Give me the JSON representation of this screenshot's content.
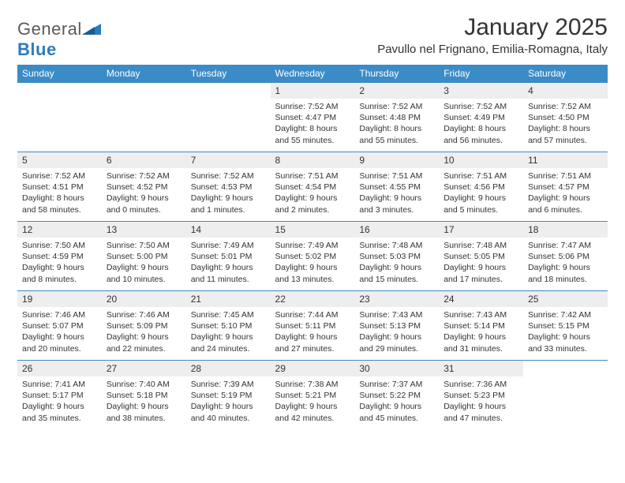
{
  "brand": {
    "text_a": "General",
    "text_b": "Blue"
  },
  "title": "January 2025",
  "location": "Pavullo nel Frignano, Emilia-Romagna, Italy",
  "colors": {
    "header_bg": "#3b8bc7",
    "header_fg": "#ffffff",
    "daynum_bg": "#eeeeee",
    "row_border": "#3b8bc7",
    "logo_blue": "#2d7bbf",
    "text": "#333333"
  },
  "weekdays": [
    "Sunday",
    "Monday",
    "Tuesday",
    "Wednesday",
    "Thursday",
    "Friday",
    "Saturday"
  ],
  "weeks": [
    [
      null,
      null,
      null,
      {
        "n": "1",
        "sr": "7:52 AM",
        "ss": "4:47 PM",
        "dh": "8",
        "dm": "55"
      },
      {
        "n": "2",
        "sr": "7:52 AM",
        "ss": "4:48 PM",
        "dh": "8",
        "dm": "55"
      },
      {
        "n": "3",
        "sr": "7:52 AM",
        "ss": "4:49 PM",
        "dh": "8",
        "dm": "56"
      },
      {
        "n": "4",
        "sr": "7:52 AM",
        "ss": "4:50 PM",
        "dh": "8",
        "dm": "57"
      }
    ],
    [
      {
        "n": "5",
        "sr": "7:52 AM",
        "ss": "4:51 PM",
        "dh": "8",
        "dm": "58"
      },
      {
        "n": "6",
        "sr": "7:52 AM",
        "ss": "4:52 PM",
        "dh": "9",
        "dm": "0"
      },
      {
        "n": "7",
        "sr": "7:52 AM",
        "ss": "4:53 PM",
        "dh": "9",
        "dm": "1"
      },
      {
        "n": "8",
        "sr": "7:51 AM",
        "ss": "4:54 PM",
        "dh": "9",
        "dm": "2"
      },
      {
        "n": "9",
        "sr": "7:51 AM",
        "ss": "4:55 PM",
        "dh": "9",
        "dm": "3"
      },
      {
        "n": "10",
        "sr": "7:51 AM",
        "ss": "4:56 PM",
        "dh": "9",
        "dm": "5"
      },
      {
        "n": "11",
        "sr": "7:51 AM",
        "ss": "4:57 PM",
        "dh": "9",
        "dm": "6"
      }
    ],
    [
      {
        "n": "12",
        "sr": "7:50 AM",
        "ss": "4:59 PM",
        "dh": "9",
        "dm": "8"
      },
      {
        "n": "13",
        "sr": "7:50 AM",
        "ss": "5:00 PM",
        "dh": "9",
        "dm": "10"
      },
      {
        "n": "14",
        "sr": "7:49 AM",
        "ss": "5:01 PM",
        "dh": "9",
        "dm": "11"
      },
      {
        "n": "15",
        "sr": "7:49 AM",
        "ss": "5:02 PM",
        "dh": "9",
        "dm": "13"
      },
      {
        "n": "16",
        "sr": "7:48 AM",
        "ss": "5:03 PM",
        "dh": "9",
        "dm": "15"
      },
      {
        "n": "17",
        "sr": "7:48 AM",
        "ss": "5:05 PM",
        "dh": "9",
        "dm": "17"
      },
      {
        "n": "18",
        "sr": "7:47 AM",
        "ss": "5:06 PM",
        "dh": "9",
        "dm": "18"
      }
    ],
    [
      {
        "n": "19",
        "sr": "7:46 AM",
        "ss": "5:07 PM",
        "dh": "9",
        "dm": "20"
      },
      {
        "n": "20",
        "sr": "7:46 AM",
        "ss": "5:09 PM",
        "dh": "9",
        "dm": "22"
      },
      {
        "n": "21",
        "sr": "7:45 AM",
        "ss": "5:10 PM",
        "dh": "9",
        "dm": "24"
      },
      {
        "n": "22",
        "sr": "7:44 AM",
        "ss": "5:11 PM",
        "dh": "9",
        "dm": "27"
      },
      {
        "n": "23",
        "sr": "7:43 AM",
        "ss": "5:13 PM",
        "dh": "9",
        "dm": "29"
      },
      {
        "n": "24",
        "sr": "7:43 AM",
        "ss": "5:14 PM",
        "dh": "9",
        "dm": "31"
      },
      {
        "n": "25",
        "sr": "7:42 AM",
        "ss": "5:15 PM",
        "dh": "9",
        "dm": "33"
      }
    ],
    [
      {
        "n": "26",
        "sr": "7:41 AM",
        "ss": "5:17 PM",
        "dh": "9",
        "dm": "35"
      },
      {
        "n": "27",
        "sr": "7:40 AM",
        "ss": "5:18 PM",
        "dh": "9",
        "dm": "38"
      },
      {
        "n": "28",
        "sr": "7:39 AM",
        "ss": "5:19 PM",
        "dh": "9",
        "dm": "40"
      },
      {
        "n": "29",
        "sr": "7:38 AM",
        "ss": "5:21 PM",
        "dh": "9",
        "dm": "42"
      },
      {
        "n": "30",
        "sr": "7:37 AM",
        "ss": "5:22 PM",
        "dh": "9",
        "dm": "45"
      },
      {
        "n": "31",
        "sr": "7:36 AM",
        "ss": "5:23 PM",
        "dh": "9",
        "dm": "47"
      },
      null
    ]
  ],
  "labels": {
    "sunrise": "Sunrise:",
    "sunset": "Sunset:",
    "daylight": "Daylight:",
    "hours": "hours",
    "and": "and",
    "minutes": "minutes."
  }
}
